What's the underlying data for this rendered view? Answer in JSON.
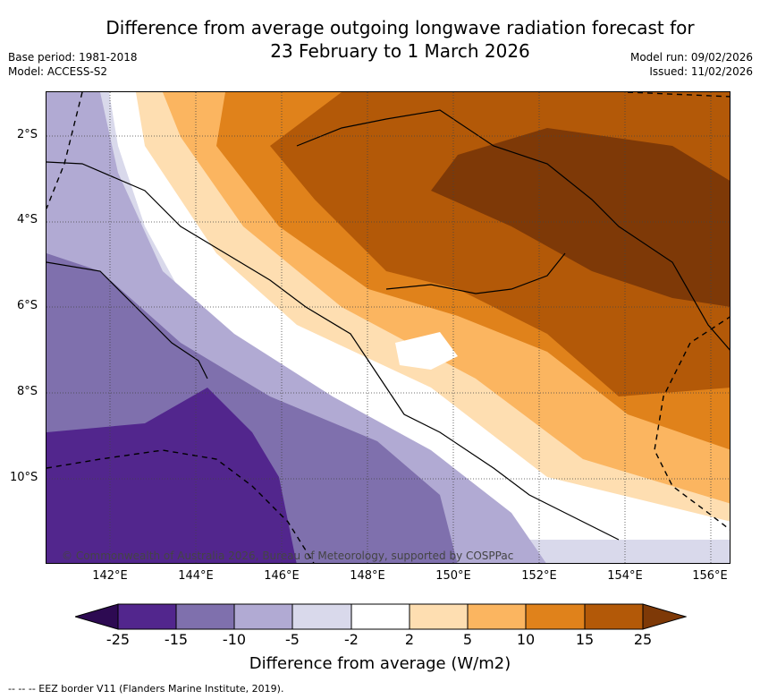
{
  "title": {
    "line1": "Difference from average outgoing longwave radiation forecast for",
    "line2": "23 February to 1 March 2026"
  },
  "meta": {
    "base_period": "Base period: 1981-2018",
    "model": "Model: ACCESS-S2",
    "model_run": "Model run: 09/02/2026",
    "issued": "Issued: 11/02/2026"
  },
  "axes": {
    "lat_labels": [
      "2°S",
      "4°S",
      "6°S",
      "8°S",
      "10°S"
    ],
    "lon_labels": [
      "142°E",
      "144°E",
      "146°E",
      "148°E",
      "150°E",
      "152°E",
      "154°E",
      "156°E"
    ]
  },
  "colorbar": {
    "tick_labels": [
      "-25",
      "-15",
      "-10",
      "-5",
      "-2",
      "2",
      "5",
      "10",
      "15",
      "25"
    ],
    "colors": [
      "#2d0a52",
      "#52268d",
      "#7f70ad",
      "#b1aad3",
      "#d9d9eb",
      "#ffffff",
      "#fedeb1",
      "#fbb560",
      "#e0821b",
      "#b35908",
      "#7e3907"
    ],
    "title": "Difference from average (W/m2)"
  },
  "copyright": "© Commonwealth of Australia 2026, Bureau of Meteorology, supported by COSPPac",
  "footnote": "--  --  -- EEZ border V11 (Flanders Marine Institute, 2019).",
  "map_layers": {
    "coastline_color": "#000000",
    "gridline_color": "#444444",
    "eez_style": "dashed"
  }
}
